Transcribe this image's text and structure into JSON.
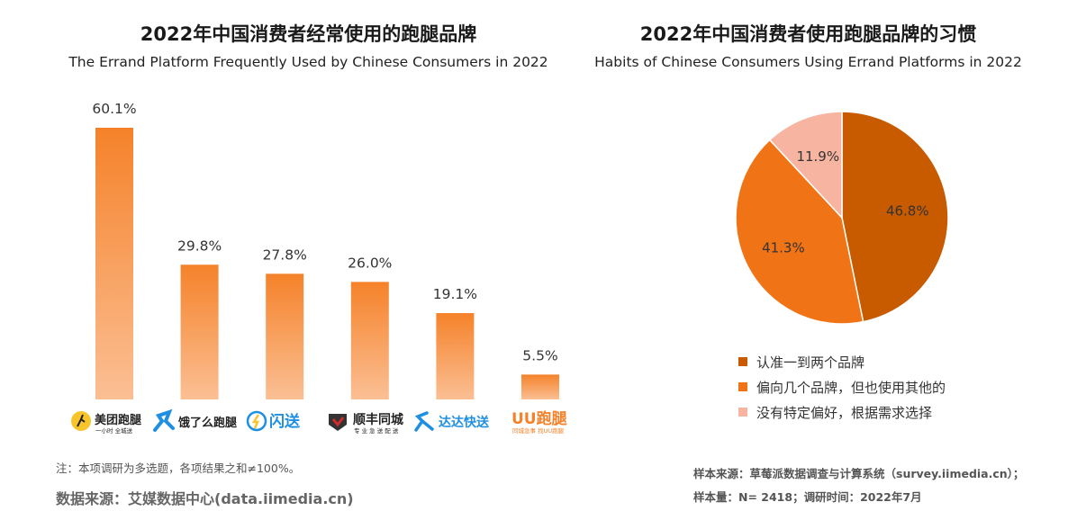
{
  "chart_data": [
    {
      "type": "bar",
      "title": "2022年中国消费者经常使用的跑腿品牌",
      "subtitle": "The Errand Platform Frequently Used by Chinese Consumers in 2022",
      "categories": [
        "美团跑腿",
        "饿了么跑腿",
        "闪送",
        "顺丰同城",
        "达达快送",
        "UU跑腿"
      ],
      "category_subtexts": [
        "一小时 全城送",
        "",
        "",
        "专 业 急 送 配 送",
        "",
        "同城急事 找UU跑腿"
      ],
      "values": [
        60.1,
        29.8,
        27.8,
        26.0,
        19.1,
        5.5
      ],
      "value_labels": [
        "60.1%",
        "29.8%",
        "27.8%",
        "26.0%",
        "19.1%",
        "5.5%"
      ],
      "ylim": [
        0,
        60.1
      ],
      "xlabel": "",
      "ylabel": "",
      "colors": {
        "bar_top": "#F5822A",
        "bar_bottom": "#FBBF94"
      }
    },
    {
      "type": "pie",
      "title": "2022年中国消费者使用跑腿品牌的习惯",
      "subtitle": "Habits of Chinese Consumers Using Errand Platforms in 2022",
      "labels": [
        "认准一到两个品牌",
        "偏向几个品牌，但也使用其他的",
        "没有特定偏好，根据需求选择"
      ],
      "values": [
        46.8,
        41.3,
        11.9
      ],
      "value_labels": [
        "46.8%",
        "41.3%",
        "11.9%"
      ],
      "colors": [
        "#C85A00",
        "#F07415",
        "#F7B4A0"
      ],
      "legend": "bottom"
    }
  ],
  "footer": {
    "note": "注：本项调研为多选题，各项结果之和≠100%。",
    "source": "数据来源：艾媒数据中心(data.iimedia.cn)",
    "sample_source": "样本来源：草莓派数据调查与计算系统（survey.iimedia.cn）；",
    "sample_size": "样本量：N= 2418；调研时间：2022年7月"
  },
  "colors": {
    "logo_yellow": "#F7C52B",
    "logo_blue": "#1E8FE1",
    "logo_red": "#D02A2A",
    "logo_dark": "#333333",
    "logo_orange": "#F5822A"
  }
}
